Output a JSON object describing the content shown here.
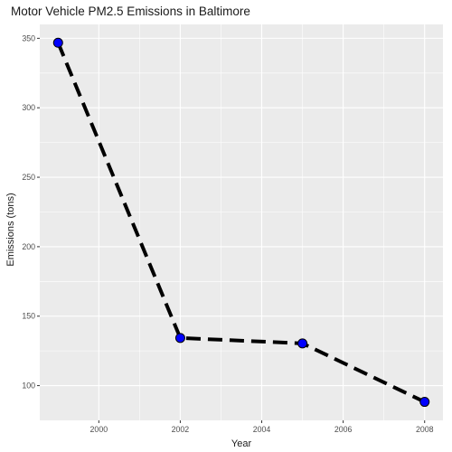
{
  "chart_data": {
    "type": "line",
    "title": "Motor Vehicle PM2.5 Emissions in Baltimore",
    "xlabel": "Year",
    "ylabel": "Emissions (tons)",
    "x": [
      1999,
      2002,
      2005,
      2008
    ],
    "series": [
      {
        "values": [
          346.8,
          134.3,
          130.4,
          88.3
        ]
      }
    ],
    "xlim": [
      1998.55,
      2008.45
    ],
    "ylim": [
      75,
      360
    ],
    "xticks": [
      2000,
      2002,
      2004,
      2006,
      2008
    ],
    "yticks": [
      100,
      150,
      200,
      250,
      300,
      350
    ],
    "line_style": "dashed",
    "line_color": "#000000",
    "point_color": "#0000ff",
    "panel_background": "#ebebeb",
    "grid": true,
    "legend": "none"
  }
}
